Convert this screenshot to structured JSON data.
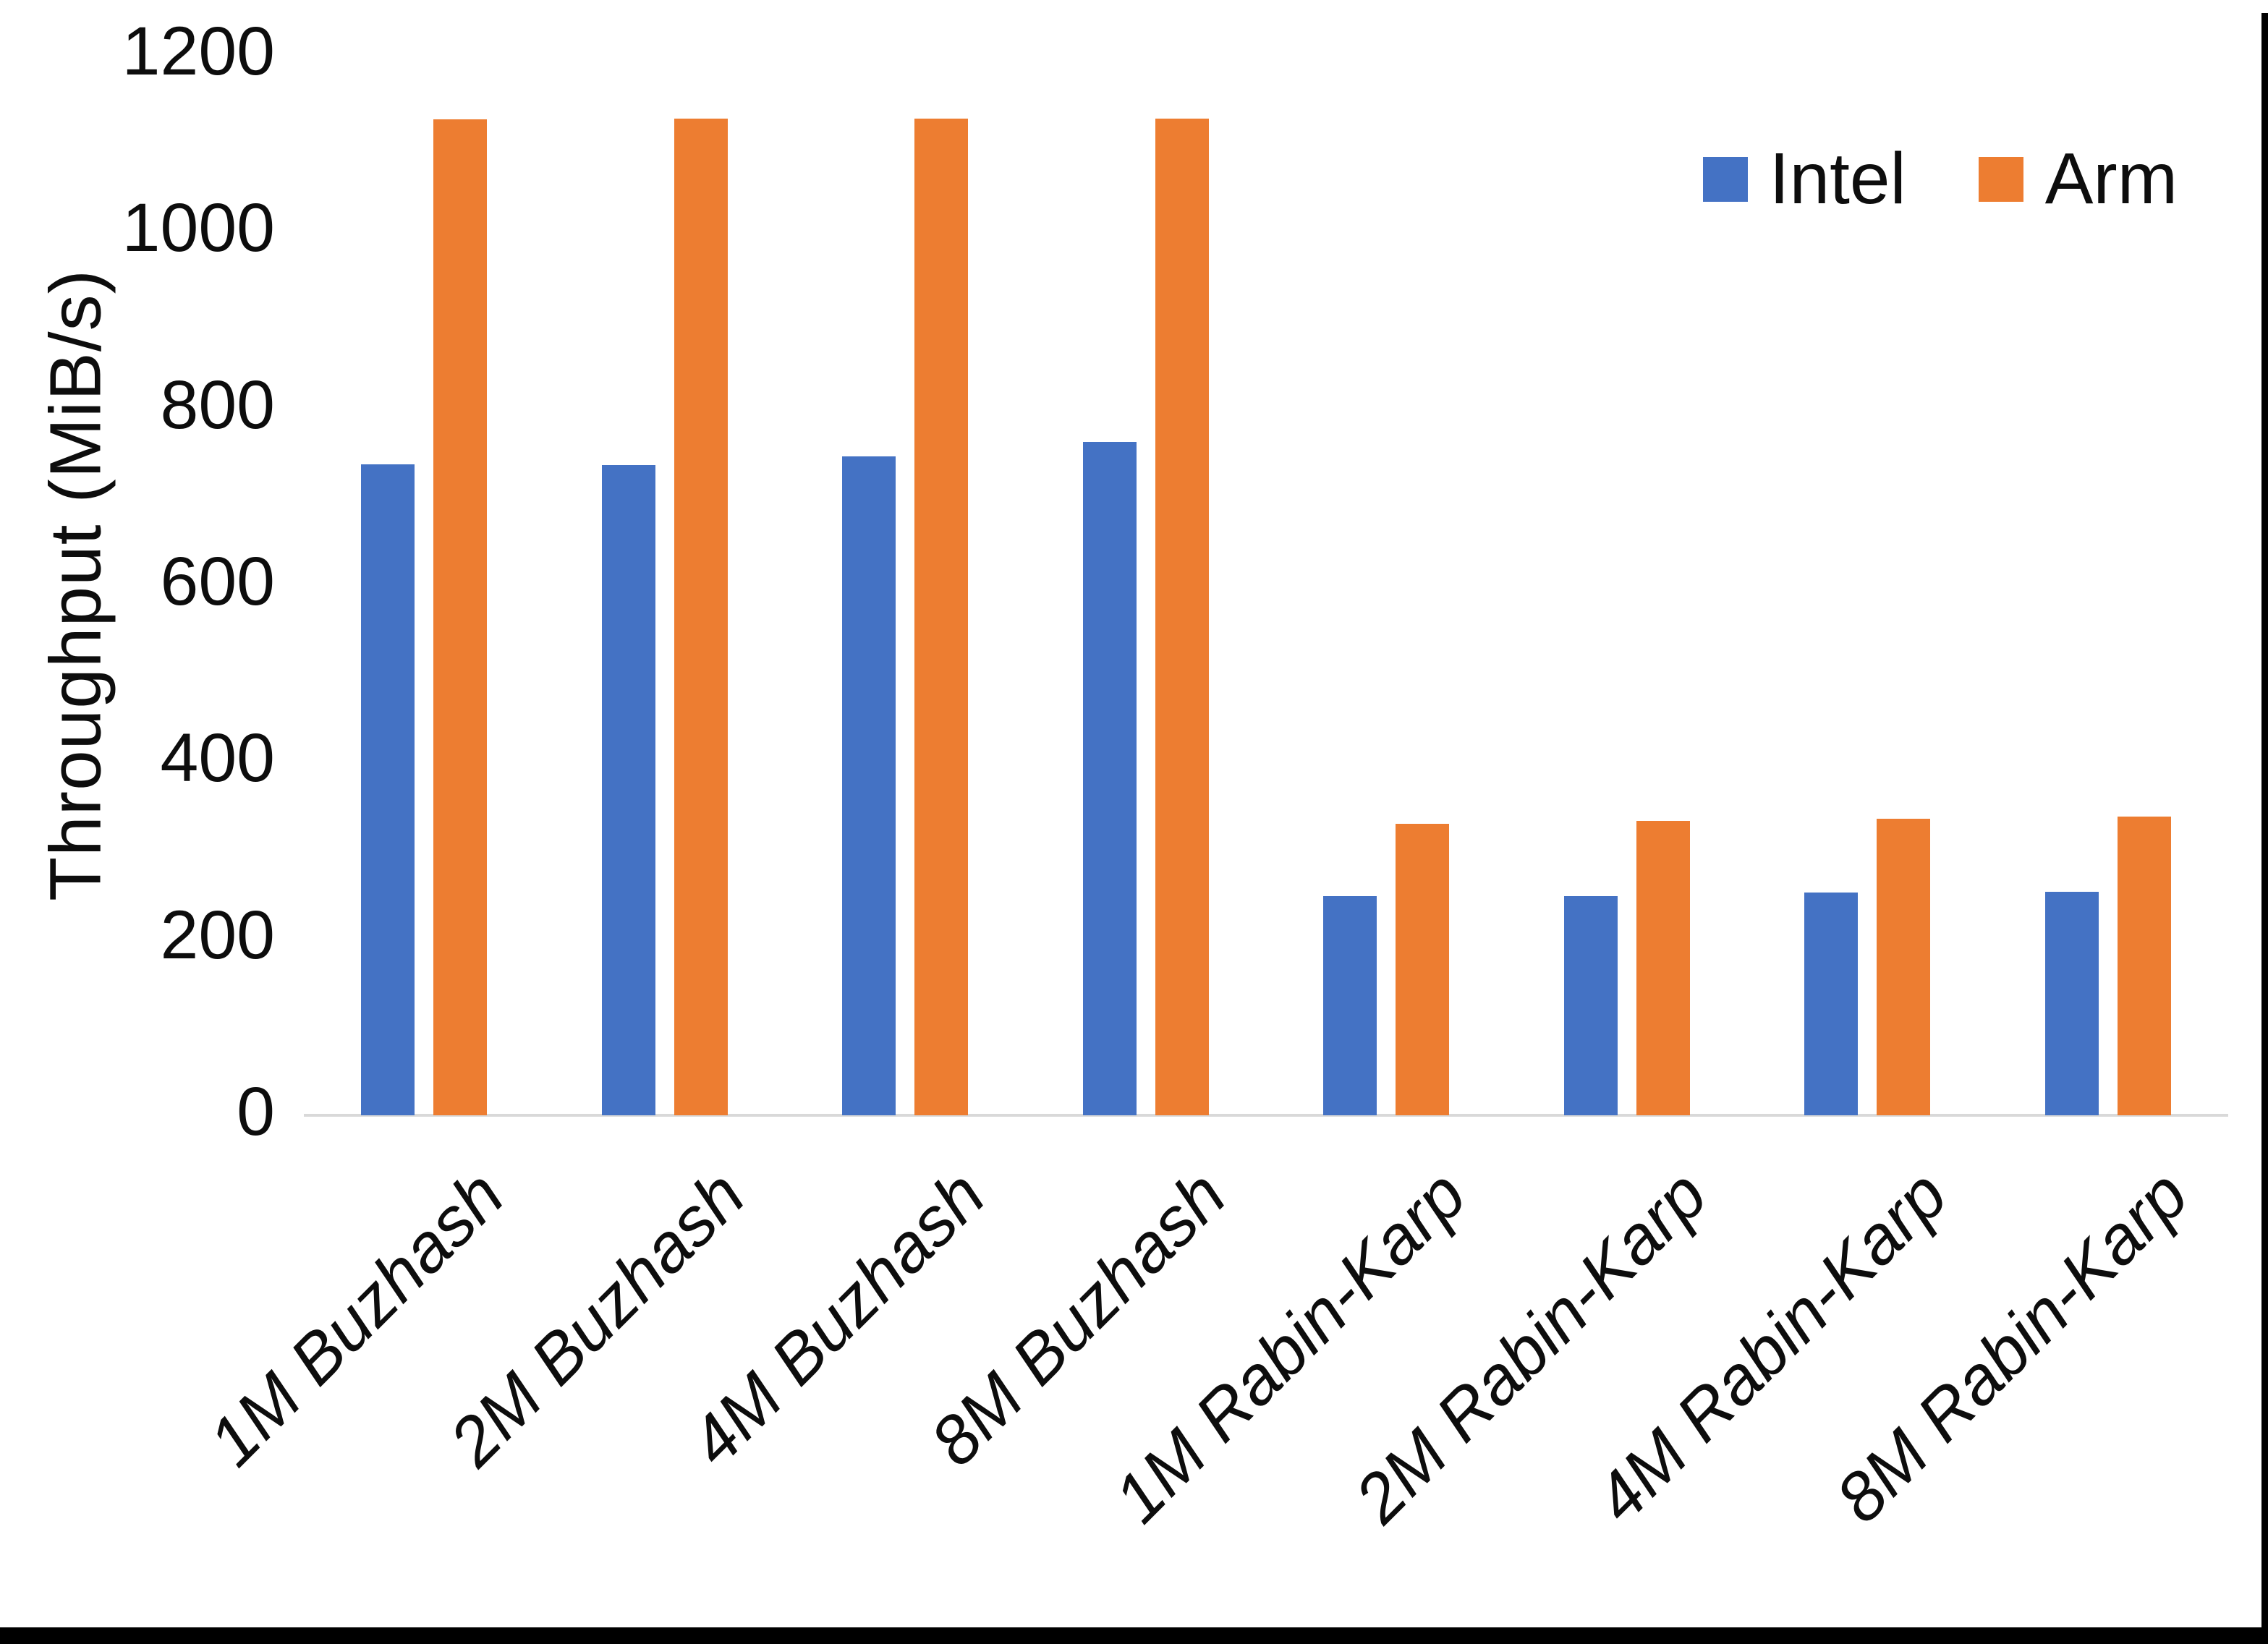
{
  "chart": {
    "y_axis": {
      "title": "Throughput (MiB/s)",
      "ticks": [
        "0",
        "200",
        "400",
        "600",
        "800",
        "1000",
        "1200"
      ],
      "min": 0,
      "max": 1200,
      "step": 200
    },
    "x_axis": {
      "tick_style": "italic, rotated 45deg"
    },
    "legend": [
      {
        "name": "Intel",
        "color": "#4472C4"
      },
      {
        "name": "Arm",
        "color": "#ED7D31"
      }
    ],
    "axis_line_color": "#d9d9d9",
    "text_color": "#0d0d0d",
    "background": "#ffffff"
  },
  "chart_data": {
    "type": "bar",
    "categories": [
      "1M Buzhash",
      "2M Buzhash",
      "4M Buzhash",
      "8M Buzhash",
      "1M Rabin-Karp",
      "2M Rabin-Karp",
      "4M Rabin-Karp",
      "8M Rabin-Karp"
    ],
    "series": [
      {
        "name": "Intel",
        "color": "#4472C4",
        "values": [
          737,
          736,
          746,
          762,
          248,
          248,
          252,
          253
        ]
      },
      {
        "name": "Arm",
        "color": "#ED7D31",
        "values": [
          1127,
          1128,
          1128,
          1128,
          330,
          333,
          336,
          338
        ]
      }
    ],
    "title": "",
    "xlabel": "",
    "ylabel": "Throughput (MiB/s)",
    "ylim": [
      0,
      1200
    ],
    "grid": false,
    "legend_position": "top-right"
  },
  "frame": {
    "bottom_border_color": "#000000",
    "right_border_color": "#000000"
  }
}
